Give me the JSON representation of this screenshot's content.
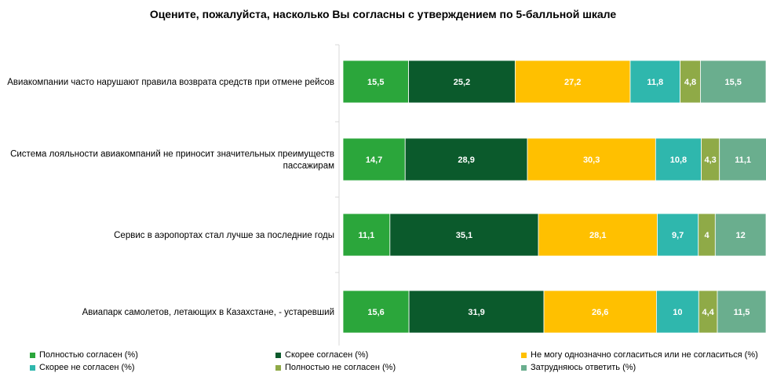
{
  "chart_data": {
    "type": "bar",
    "orientation": "horizontal",
    "stacked": true,
    "title": "Оцените, пожалуйста, насколько Вы согласны с утверждением по 5-балльной шкале",
    "categories": [
      "Авиакомпании часто нарушают правила возврата средств при отмене рейсов",
      "Система лояльности авиакомпаний не приносит значительных преимуществ пассажирам",
      "Сервис в аэропортах стал лучше за последние годы",
      "Авиапарк самолетов, летающих в Казахстане, - устаревший"
    ],
    "category_lines": [
      [
        "Авиакомпании часто нарушают правила возврата средств при отмене рейсов"
      ],
      [
        "Система лояльности авиакомпаний не приносит значительных преимуществ",
        "пассажирам"
      ],
      [
        "Сервис в аэропортах стал лучше за последние годы"
      ],
      [
        "Авиапарк самолетов, летающих в Казахстане, - устаревший"
      ]
    ],
    "series": [
      {
        "name": "Полностью согласен (%)",
        "color": "#2ba63b",
        "values": [
          15.5,
          14.7,
          11.1,
          15.6
        ],
        "labels": [
          "15,5",
          "14,7",
          "11,1",
          "15,6"
        ]
      },
      {
        "name": "Скорее согласен (%)",
        "color": "#0b5a2c",
        "values": [
          25.2,
          28.9,
          35.1,
          31.9
        ],
        "labels": [
          "25,2",
          "28,9",
          "35,1",
          "31,9"
        ]
      },
      {
        "name": "Не могу однозначно согласиться или не согласиться (%)",
        "color": "#ffc000",
        "values": [
          27.2,
          30.3,
          28.1,
          26.6
        ],
        "labels": [
          "27,2",
          "30,3",
          "28,1",
          "26,6"
        ]
      },
      {
        "name": "Скорее не согласен (%)",
        "color": "#2fb7ad",
        "values": [
          11.8,
          10.8,
          9.7,
          10
        ],
        "labels": [
          "11,8",
          "10,8",
          "9,7",
          "10"
        ]
      },
      {
        "name": "Полностью не согласен (%)",
        "color": "#8faa47",
        "values": [
          4.8,
          4.3,
          4,
          4.4
        ],
        "labels": [
          "4,8",
          "4,3",
          "4",
          "4,4"
        ]
      },
      {
        "name": "Затрудняюсь ответить (%)",
        "color": "#6aae8e",
        "values": [
          15.5,
          11.1,
          12,
          11.5
        ],
        "labels": [
          "15,5",
          "11,1",
          "12",
          "11,5"
        ]
      }
    ],
    "xlim": [
      0,
      100
    ],
    "grid": false,
    "legend_position": "bottom"
  }
}
